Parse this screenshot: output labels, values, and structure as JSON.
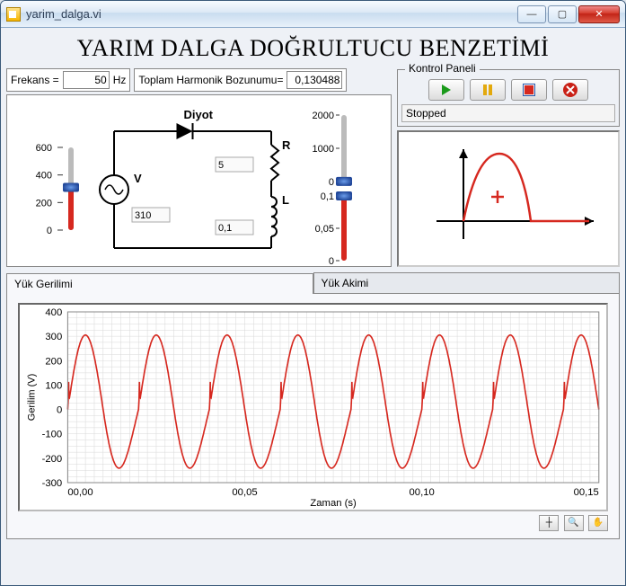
{
  "window": {
    "title": "yarim_dalga.vi"
  },
  "main_title": "YARIM DALGA DOĞRULTUCU BENZETİMİ",
  "params": {
    "freq_label": "Frekans =",
    "freq_value": "50",
    "freq_unit": "Hz",
    "thd_label": "Toplam Harmonik Bozunumu=",
    "thd_value": "0,130488"
  },
  "circuit": {
    "diode_label": "Diyot",
    "V_label": "V",
    "V_value": "310",
    "R_label": "R",
    "R_value": "5",
    "L_label": "L",
    "L_value": "0,1"
  },
  "sliders": {
    "voltage": {
      "ticks": [
        "600",
        "400",
        "200",
        "0"
      ],
      "min": 0,
      "max": 600,
      "value": 310,
      "track_color": "#bbbbbb",
      "fill_color": "#d6281f",
      "knob_color": "#2a5bb0"
    },
    "resistance": {
      "ticks": [
        "2000",
        "1000",
        "0"
      ],
      "min": 0,
      "max": 2000,
      "value": 5
    },
    "inductance": {
      "ticks": [
        "0,1",
        "0,05",
        "0"
      ],
      "min": 0,
      "max": 0.1,
      "value": 0.1
    }
  },
  "control_panel": {
    "legend": "Kontrol Paneli",
    "run_icon": "run-icon",
    "pause_icon": "pause-icon",
    "stop_icon": "stop-icon",
    "abort_icon": "abort-icon",
    "status": "Stopped"
  },
  "scope": {
    "cross_color": "#d6281f",
    "axis_color": "#000000"
  },
  "tabs": {
    "tab1": "Yük Gerilimi",
    "tab2": "Yük Akimi"
  },
  "graph": {
    "type": "line",
    "ylabel": "Gerilim (V)",
    "xlabel": "Zaman (s)",
    "ylim": [
      -300,
      400
    ],
    "ytick_step": 100,
    "yticks": [
      "400",
      "300",
      "200",
      "100",
      "0",
      "-100",
      "-200",
      "-300"
    ],
    "xlim": [
      0.0,
      0.15
    ],
    "xticks": [
      "00,00",
      "00,05",
      "00,10",
      "00,15"
    ],
    "line_color": "#d6281f",
    "grid_color": "#d8d8d8",
    "background_color": "#ffffff",
    "label_fontsize": 11,
    "periods": 7.5,
    "amplitude": 305,
    "clip_bottom": -300,
    "spike_height": 90
  },
  "graph_tools": {
    "t1": "cursor-tool-icon",
    "t2": "zoom-tool-icon",
    "t3": "pan-tool-icon"
  }
}
